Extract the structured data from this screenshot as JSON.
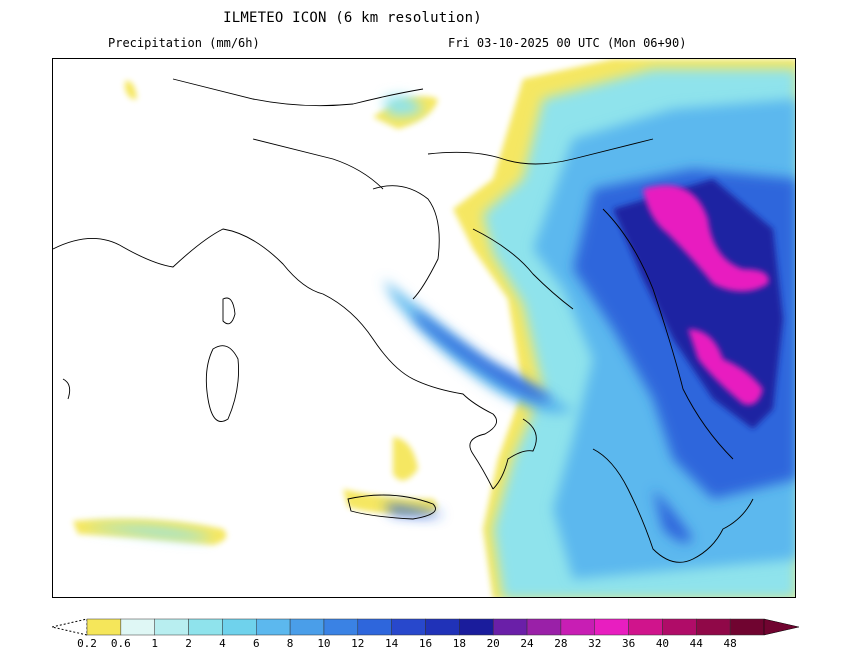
{
  "header": {
    "title": "ILMETEO ICON (6 km resolution)",
    "variable": "Precipitation (mm/6h)",
    "valid_time": "Fri 03-10-2025 00 UTC (Mon 06+90)"
  },
  "legend": {
    "ticks": [
      "0.2",
      "0.6",
      "1",
      "2",
      "4",
      "6",
      "8",
      "10",
      "12",
      "14",
      "16",
      "18",
      "20",
      "24",
      "28",
      "32",
      "36",
      "40",
      "44",
      "48"
    ],
    "colors": [
      "#f5e65a",
      "#dff7f5",
      "#b8eef0",
      "#8fe3ec",
      "#6fd2ec",
      "#5cb8ee",
      "#4a9ee9",
      "#3a82e4",
      "#2e66dc",
      "#2848cc",
      "#2032b8",
      "#1a1c9c",
      "#6a1fa8",
      "#9a20a8",
      "#c81eb4",
      "#e81ec0",
      "#d0148c",
      "#b00c68",
      "#900848",
      "#700430"
    ]
  },
  "colors": {
    "border": "#000000",
    "background": "#ffffff"
  }
}
